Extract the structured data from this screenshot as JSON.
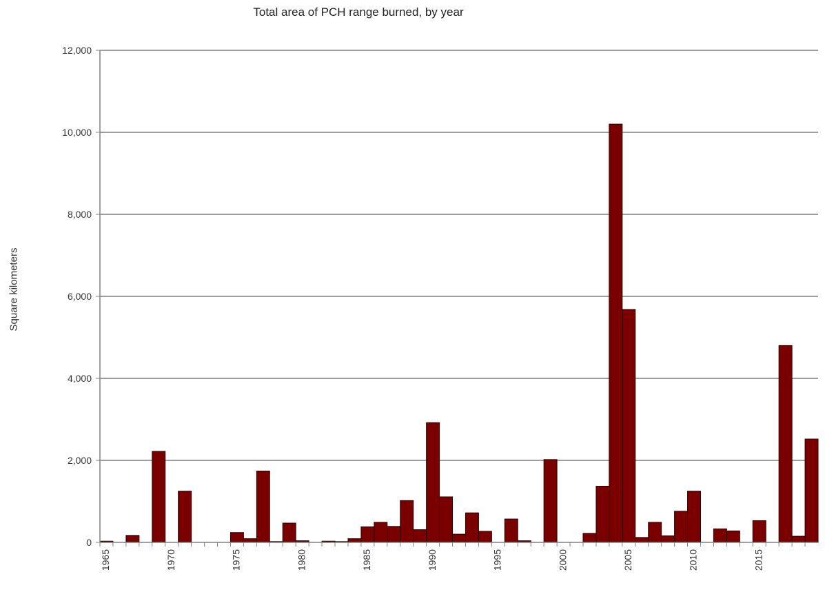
{
  "chart_data": {
    "type": "bar",
    "title": "Total area of PCH range burned, by year",
    "xlabel": "",
    "ylabel": "Square kilometers",
    "ylim": [
      0,
      12000
    ],
    "yticks": [
      0,
      2000,
      4000,
      6000,
      8000,
      10000,
      12000
    ],
    "ytick_labels": [
      "0",
      "2,000",
      "4,000",
      "6,000",
      "8,000",
      "10,000",
      "12,000"
    ],
    "xtick_labels": [
      "1965",
      "1970",
      "1975",
      "1980",
      "1985",
      "1990",
      "1995",
      "2000",
      "2005",
      "2010",
      "2015"
    ],
    "grid": true,
    "legend": "none",
    "bar_color": "#7a0000",
    "categories": [
      1965,
      1966,
      1967,
      1968,
      1969,
      1970,
      1971,
      1972,
      1973,
      1974,
      1975,
      1976,
      1977,
      1978,
      1979,
      1980,
      1981,
      1982,
      1983,
      1984,
      1985,
      1986,
      1987,
      1988,
      1989,
      1990,
      1991,
      1992,
      1993,
      1994,
      1995,
      1996,
      1997,
      1998,
      1999,
      2000,
      2001,
      2002,
      2003,
      2004,
      2005,
      2006,
      2007,
      2008,
      2009,
      2010,
      2011,
      2012,
      2013,
      2014,
      2015,
      2016,
      2017,
      2018,
      2019
    ],
    "values": [
      30,
      0,
      170,
      0,
      2220,
      0,
      1250,
      0,
      0,
      0,
      240,
      90,
      1740,
      20,
      470,
      40,
      0,
      30,
      20,
      90,
      380,
      490,
      390,
      1020,
      310,
      2920,
      1110,
      200,
      720,
      270,
      0,
      570,
      40,
      0,
      2020,
      0,
      0,
      220,
      1370,
      10200,
      5680,
      120,
      490,
      160,
      760,
      1250,
      0,
      330,
      280,
      0,
      530,
      0,
      4800,
      150,
      2520
    ]
  }
}
